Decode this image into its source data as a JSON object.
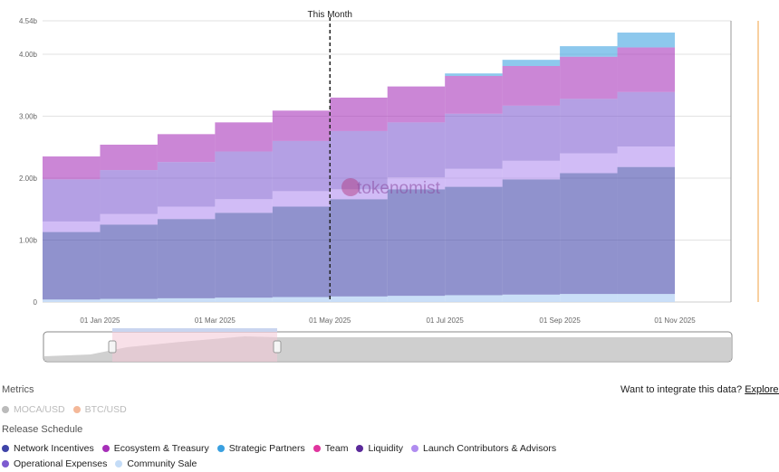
{
  "chart_data": {
    "type": "stacked-step-area",
    "x": [
      null,
      "01 Jan 2025",
      null,
      "01 Mar 2025",
      null,
      "01 May 2025",
      null,
      "01 Jul 2025",
      null,
      "01 Sep 2025",
      null,
      "01 Nov 2025"
    ],
    "ylim": [
      0,
      4.54
    ],
    "yticks": [
      0,
      {
        "value": 1,
        "label": "1.00b"
      },
      {
        "value": 2,
        "label": "2.00b"
      },
      {
        "value": 3,
        "label": "3.00b"
      },
      {
        "value": 4,
        "label": "4.00b"
      },
      {
        "value": 4.54,
        "label": "4.54b"
      }
    ],
    "grid": true,
    "annotation": {
      "text": "This Month",
      "x": "01 May 2025"
    },
    "watermark": "tokenomist",
    "series": [
      {
        "name": "Network Incentives",
        "color": "#3f44a8",
        "values": [
          1.09,
          1.2,
          1.28,
          1.37,
          1.46,
          1.57,
          1.72,
          1.75,
          1.86,
          1.95,
          2.05,
          null
        ]
      },
      {
        "name": "Ecosystem & Treasury",
        "color": "#a62fb8",
        "values": [
          0.37,
          0.41,
          0.45,
          0.47,
          0.49,
          0.54,
          0.58,
          0.61,
          0.64,
          0.68,
          0.72,
          null
        ]
      },
      {
        "name": "Strategic Partners",
        "color": "#3aa0e0",
        "values": [
          0,
          0,
          0,
          0,
          0,
          0,
          0,
          0.04,
          0.1,
          0.17,
          0.24,
          null
        ]
      },
      {
        "name": "Team",
        "color": "#e0359e",
        "values": [
          0,
          0,
          0,
          0,
          0,
          0,
          0,
          0,
          0,
          0,
          0,
          null
        ]
      },
      {
        "name": "Liquidity",
        "color": "#5b2a9a",
        "values": [
          0,
          0,
          0,
          0,
          0,
          0,
          0,
          0,
          0,
          0,
          0,
          null
        ]
      },
      {
        "name": "Launch Contributors & Advisors",
        "color": "#b08cf0",
        "values": [
          0.17,
          0.17,
          0.2,
          0.22,
          0.25,
          0.16,
          0.19,
          0.29,
          0.3,
          0.32,
          0.33,
          null
        ]
      },
      {
        "name": "Operational Expenses",
        "color": "#7d5bd0",
        "values": [
          0.68,
          0.71,
          0.72,
          0.77,
          0.81,
          0.94,
          0.89,
          0.89,
          0.89,
          0.88,
          0.88,
          null
        ]
      },
      {
        "name": "Community Sale",
        "color": "#c4dcf7",
        "values": [
          0.04,
          0.05,
          0.06,
          0.07,
          0.08,
          0.09,
          0.1,
          0.11,
          0.12,
          0.13,
          0.13,
          null
        ]
      }
    ],
    "stack_order": [
      7,
      0,
      5,
      6,
      4,
      3,
      1,
      2
    ]
  },
  "metrics": {
    "title": "Metrics",
    "items": [
      "MOCA/USD",
      "BTC/USD"
    ],
    "colors": [
      "#bbbbbb",
      "#f4b899"
    ]
  },
  "legend_title": "Release Schedule",
  "integrate": {
    "text": "Want to integrate this data?",
    "link": "Explore our API"
  }
}
